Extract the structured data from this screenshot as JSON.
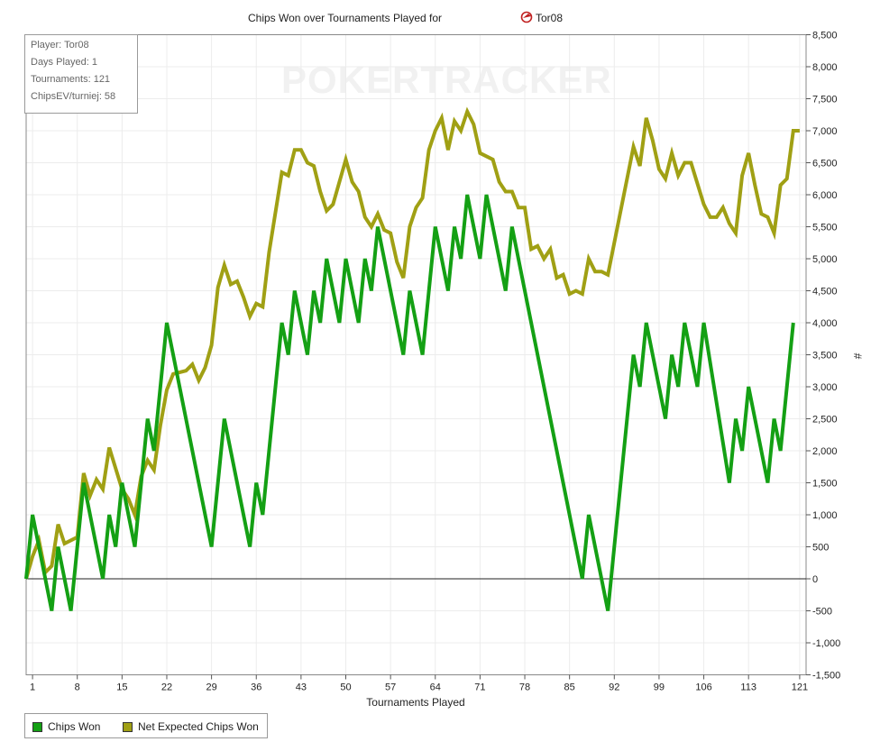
{
  "chart_data": {
    "type": "line",
    "title": "Chips Won over Tournaments Played for",
    "title_player": "Tor08",
    "xlabel": "Tournaments Played",
    "ylabel": "#",
    "xlim": [
      0,
      122
    ],
    "ylim": [
      -1500,
      8500
    ],
    "x_ticks": [
      1,
      8,
      15,
      22,
      29,
      36,
      43,
      50,
      57,
      64,
      71,
      78,
      85,
      92,
      99,
      106,
      113,
      121
    ],
    "y_ticks": [
      -1500,
      -1000,
      -500,
      0,
      500,
      1000,
      1500,
      2000,
      2500,
      3000,
      3500,
      4000,
      4500,
      5000,
      5500,
      6000,
      6500,
      7000,
      7500,
      8000,
      8500
    ],
    "y_tick_labels": [
      "-1,500",
      "-1,000",
      "-500",
      "0",
      "500",
      "1,000",
      "1,500",
      "2,000",
      "2,500",
      "3,000",
      "3,500",
      "4,000",
      "4,500",
      "5,000",
      "5,500",
      "6,000",
      "6,500",
      "7,000",
      "7,500",
      "8,000",
      "8,500"
    ],
    "grid": true,
    "legend_position": "bottom-left",
    "series": [
      {
        "name": "Chips Won",
        "color": "#14a014",
        "points": [
          [
            0,
            0
          ],
          [
            1,
            1000
          ],
          [
            2,
            500
          ],
          [
            3,
            0
          ],
          [
            4,
            -500
          ],
          [
            5,
            500
          ],
          [
            6,
            0
          ],
          [
            7,
            -500
          ],
          [
            9,
            1500
          ],
          [
            12,
            0
          ],
          [
            13,
            1000
          ],
          [
            14,
            500
          ],
          [
            15,
            1500
          ],
          [
            17,
            500
          ],
          [
            19,
            2500
          ],
          [
            20,
            2000
          ],
          [
            22,
            4000
          ],
          [
            29,
            500
          ],
          [
            31,
            2500
          ],
          [
            35,
            500
          ],
          [
            36,
            1500
          ],
          [
            37,
            1000
          ],
          [
            40,
            4000
          ],
          [
            41,
            3500
          ],
          [
            42,
            4500
          ],
          [
            44,
            3500
          ],
          [
            45,
            4500
          ],
          [
            46,
            4000
          ],
          [
            47,
            5000
          ],
          [
            49,
            4000
          ],
          [
            50,
            5000
          ],
          [
            52,
            4000
          ],
          [
            53,
            5000
          ],
          [
            54,
            4500
          ],
          [
            55,
            5500
          ],
          [
            59,
            3500
          ],
          [
            60,
            4500
          ],
          [
            62,
            3500
          ],
          [
            64,
            5500
          ],
          [
            66,
            4500
          ],
          [
            67,
            5500
          ],
          [
            68,
            5000
          ],
          [
            69,
            6000
          ],
          [
            71,
            5000
          ],
          [
            72,
            6000
          ],
          [
            75,
            4500
          ],
          [
            76,
            5500
          ],
          [
            87,
            0
          ],
          [
            88,
            1000
          ],
          [
            91,
            -500
          ],
          [
            95,
            3500
          ],
          [
            96,
            3000
          ],
          [
            97,
            4000
          ],
          [
            100,
            2500
          ],
          [
            101,
            3500
          ],
          [
            102,
            3000
          ],
          [
            103,
            4000
          ],
          [
            105,
            3000
          ],
          [
            106,
            4000
          ],
          [
            110,
            1500
          ],
          [
            111,
            2500
          ],
          [
            112,
            2000
          ],
          [
            113,
            3000
          ],
          [
            116,
            1500
          ],
          [
            117,
            2500
          ],
          [
            118,
            2000
          ],
          [
            120,
            4000
          ]
        ]
      },
      {
        "name": "Net Expected Chips Won",
        "color": "#a0a014",
        "points": [
          [
            0,
            0
          ],
          [
            1,
            350
          ],
          [
            2,
            600
          ],
          [
            3,
            100
          ],
          [
            4,
            200
          ],
          [
            5,
            850
          ],
          [
            6,
            550
          ],
          [
            8,
            650
          ],
          [
            9,
            1650
          ],
          [
            10,
            1300
          ],
          [
            11,
            1550
          ],
          [
            12,
            1400
          ],
          [
            13,
            2050
          ],
          [
            15,
            1400
          ],
          [
            16,
            1250
          ],
          [
            17,
            1000
          ],
          [
            18,
            1600
          ],
          [
            19,
            1850
          ],
          [
            20,
            1700
          ],
          [
            21,
            2400
          ],
          [
            22,
            2950
          ],
          [
            23,
            3200
          ],
          [
            25,
            3250
          ],
          [
            26,
            3350
          ],
          [
            27,
            3100
          ],
          [
            28,
            3300
          ],
          [
            29,
            3650
          ],
          [
            30,
            4550
          ],
          [
            31,
            4900
          ],
          [
            32,
            4600
          ],
          [
            33,
            4650
          ],
          [
            34,
            4400
          ],
          [
            35,
            4100
          ],
          [
            36,
            4300
          ],
          [
            37,
            4250
          ],
          [
            38,
            5100
          ],
          [
            40,
            6350
          ],
          [
            41,
            6300
          ],
          [
            42,
            6700
          ],
          [
            43,
            6700
          ],
          [
            44,
            6500
          ],
          [
            45,
            6450
          ],
          [
            46,
            6050
          ],
          [
            47,
            5750
          ],
          [
            48,
            5850
          ],
          [
            50,
            6550
          ],
          [
            51,
            6200
          ],
          [
            52,
            6050
          ],
          [
            53,
            5650
          ],
          [
            54,
            5500
          ],
          [
            55,
            5700
          ],
          [
            56,
            5450
          ],
          [
            57,
            5400
          ],
          [
            58,
            4950
          ],
          [
            59,
            4700
          ],
          [
            60,
            5500
          ],
          [
            61,
            5800
          ],
          [
            62,
            5950
          ],
          [
            63,
            6700
          ],
          [
            64,
            7000
          ],
          [
            65,
            7200
          ],
          [
            66,
            6700
          ],
          [
            67,
            7150
          ],
          [
            68,
            7000
          ],
          [
            69,
            7300
          ],
          [
            70,
            7100
          ],
          [
            71,
            6650
          ],
          [
            73,
            6550
          ],
          [
            74,
            6200
          ],
          [
            75,
            6050
          ],
          [
            76,
            6050
          ],
          [
            77,
            5800
          ],
          [
            78,
            5800
          ],
          [
            79,
            5150
          ],
          [
            80,
            5200
          ],
          [
            81,
            5000
          ],
          [
            82,
            5150
          ],
          [
            83,
            4700
          ],
          [
            84,
            4750
          ],
          [
            85,
            4450
          ],
          [
            86,
            4500
          ],
          [
            87,
            4450
          ],
          [
            88,
            5000
          ],
          [
            89,
            4800
          ],
          [
            90,
            4800
          ],
          [
            91,
            4750
          ],
          [
            95,
            6750
          ],
          [
            96,
            6450
          ],
          [
            97,
            7200
          ],
          [
            98,
            6850
          ],
          [
            99,
            6400
          ],
          [
            100,
            6250
          ],
          [
            101,
            6650
          ],
          [
            102,
            6300
          ],
          [
            103,
            6500
          ],
          [
            104,
            6500
          ],
          [
            106,
            5850
          ],
          [
            107,
            5650
          ],
          [
            108,
            5650
          ],
          [
            109,
            5800
          ],
          [
            110,
            5550
          ],
          [
            111,
            5400
          ],
          [
            112,
            6300
          ],
          [
            113,
            6650
          ],
          [
            114,
            6150
          ],
          [
            115,
            5700
          ],
          [
            116,
            5650
          ],
          [
            117,
            5400
          ],
          [
            118,
            6150
          ],
          [
            119,
            6250
          ],
          [
            120,
            7000
          ],
          [
            121,
            7000
          ]
        ]
      }
    ]
  },
  "info": {
    "player": "Player: Tor08",
    "days_played": "Days Played: 1",
    "tournaments": "Tournaments: 121",
    "chipsev": "ChipsEV/turniej: 58"
  },
  "watermark": "POKERTRACKER",
  "legend": {
    "items": [
      {
        "label": "Chips Won",
        "color": "#14a014"
      },
      {
        "label": "Net Expected Chips Won",
        "color": "#a0a014"
      }
    ]
  }
}
